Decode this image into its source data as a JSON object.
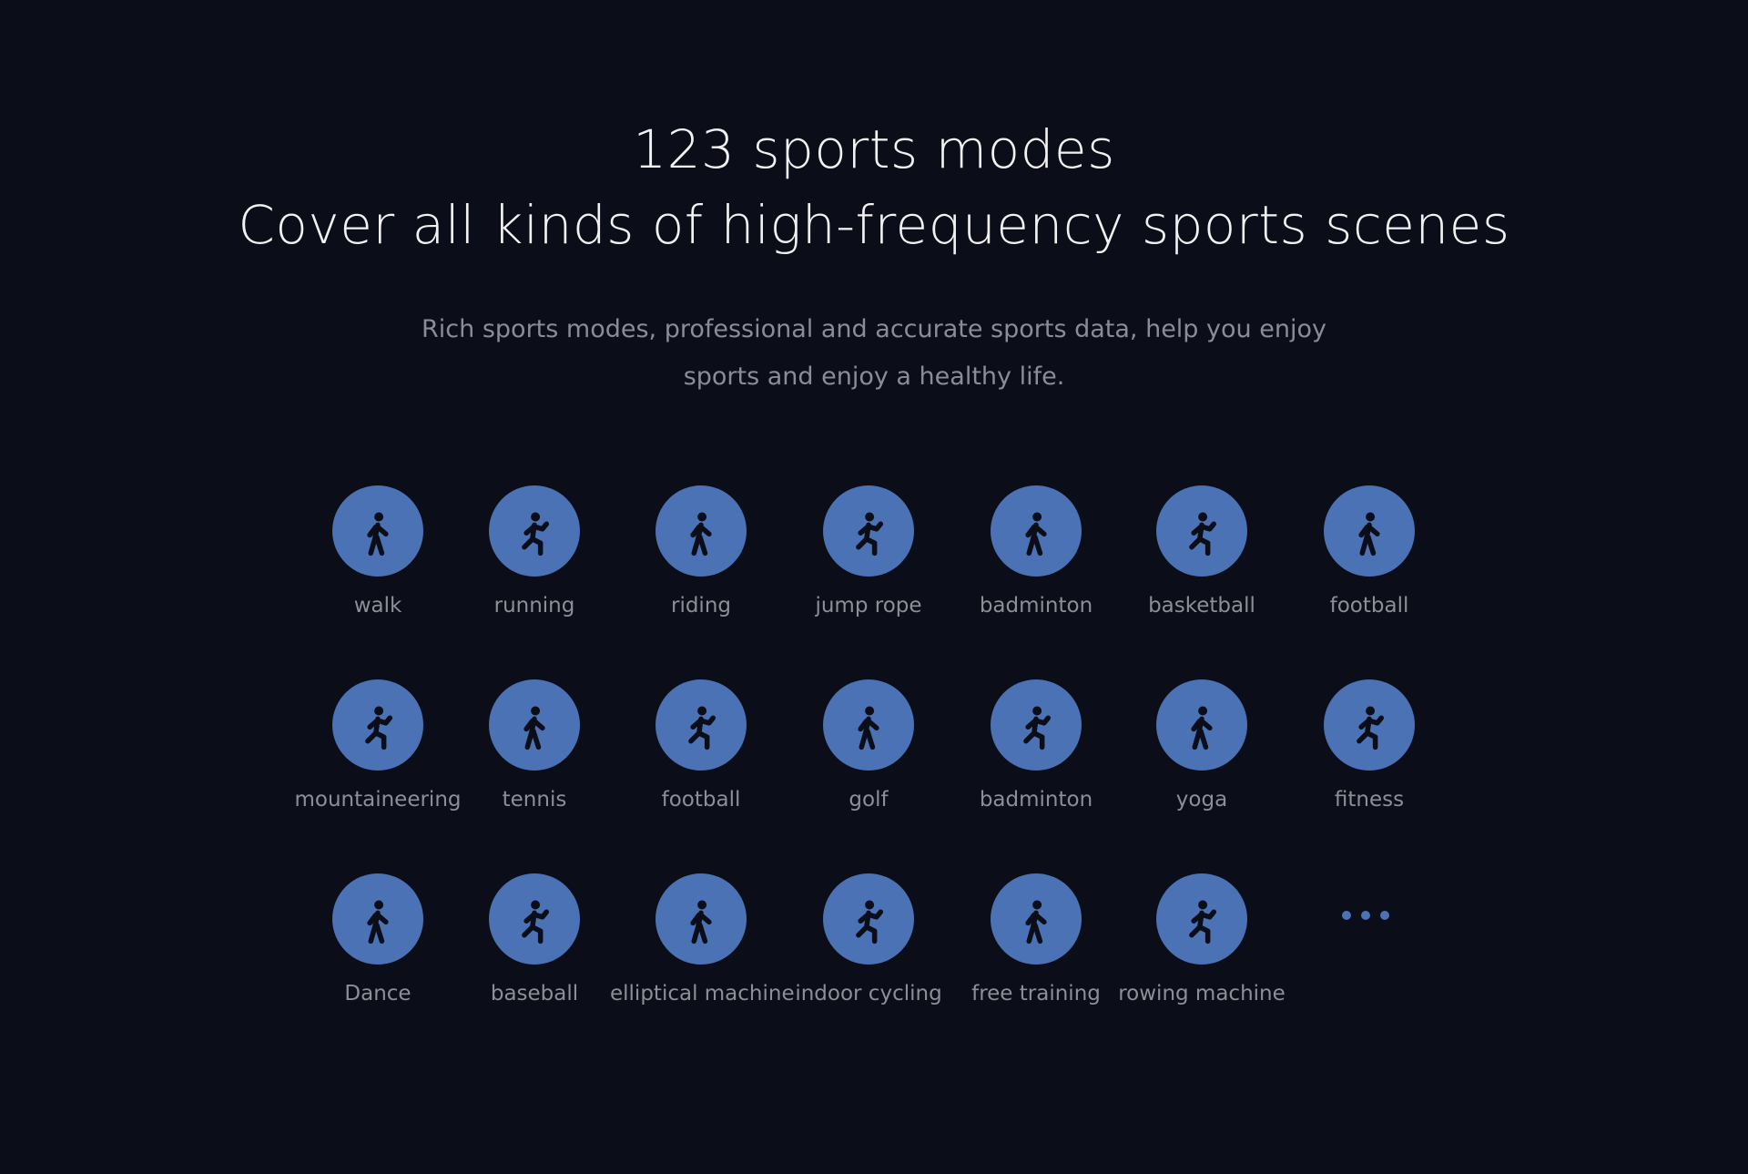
{
  "header": {
    "title_line1": "123 sports modes",
    "title_line2": "Cover all kinds of high-frequency sports scenes",
    "subtitle_line1": "Rich sports modes, professional and accurate sports data, help you enjoy",
    "subtitle_line2": "sports and enjoy a healthy life."
  },
  "colors": {
    "background": "#0b0e18",
    "accent": "#4a72b5",
    "icon": "#0b0e18"
  },
  "sports": [
    {
      "label": "walk",
      "icon": "walk-icon"
    },
    {
      "label": "running",
      "icon": "running-icon"
    },
    {
      "label": "riding",
      "icon": "riding-icon"
    },
    {
      "label": "jump rope",
      "icon": "jump-rope-icon"
    },
    {
      "label": "badminton",
      "icon": "badminton-icon"
    },
    {
      "label": "basketball",
      "icon": "basketball-icon"
    },
    {
      "label": "football",
      "icon": "football-icon"
    },
    {
      "label": "mountaineering",
      "icon": "mountaineering-icon"
    },
    {
      "label": "tennis",
      "icon": "tennis-icon"
    },
    {
      "label": "football",
      "icon": "football-icon"
    },
    {
      "label": "golf",
      "icon": "golf-icon"
    },
    {
      "label": "badminton",
      "icon": "badminton-icon"
    },
    {
      "label": "yoga",
      "icon": "yoga-icon"
    },
    {
      "label": "fitness",
      "icon": "fitness-icon"
    },
    {
      "label": "Dance",
      "icon": "dance-icon"
    },
    {
      "label": "baseball",
      "icon": "baseball-icon"
    },
    {
      "label": "elliptical machine",
      "icon": "elliptical-machine-icon"
    },
    {
      "label": "indoor cycling",
      "icon": "indoor-cycling-icon"
    },
    {
      "label": "free training",
      "icon": "free-training-icon"
    },
    {
      "label": "rowing machine",
      "icon": "rowing-machine-icon"
    }
  ],
  "more_icon": "ellipsis-icon"
}
